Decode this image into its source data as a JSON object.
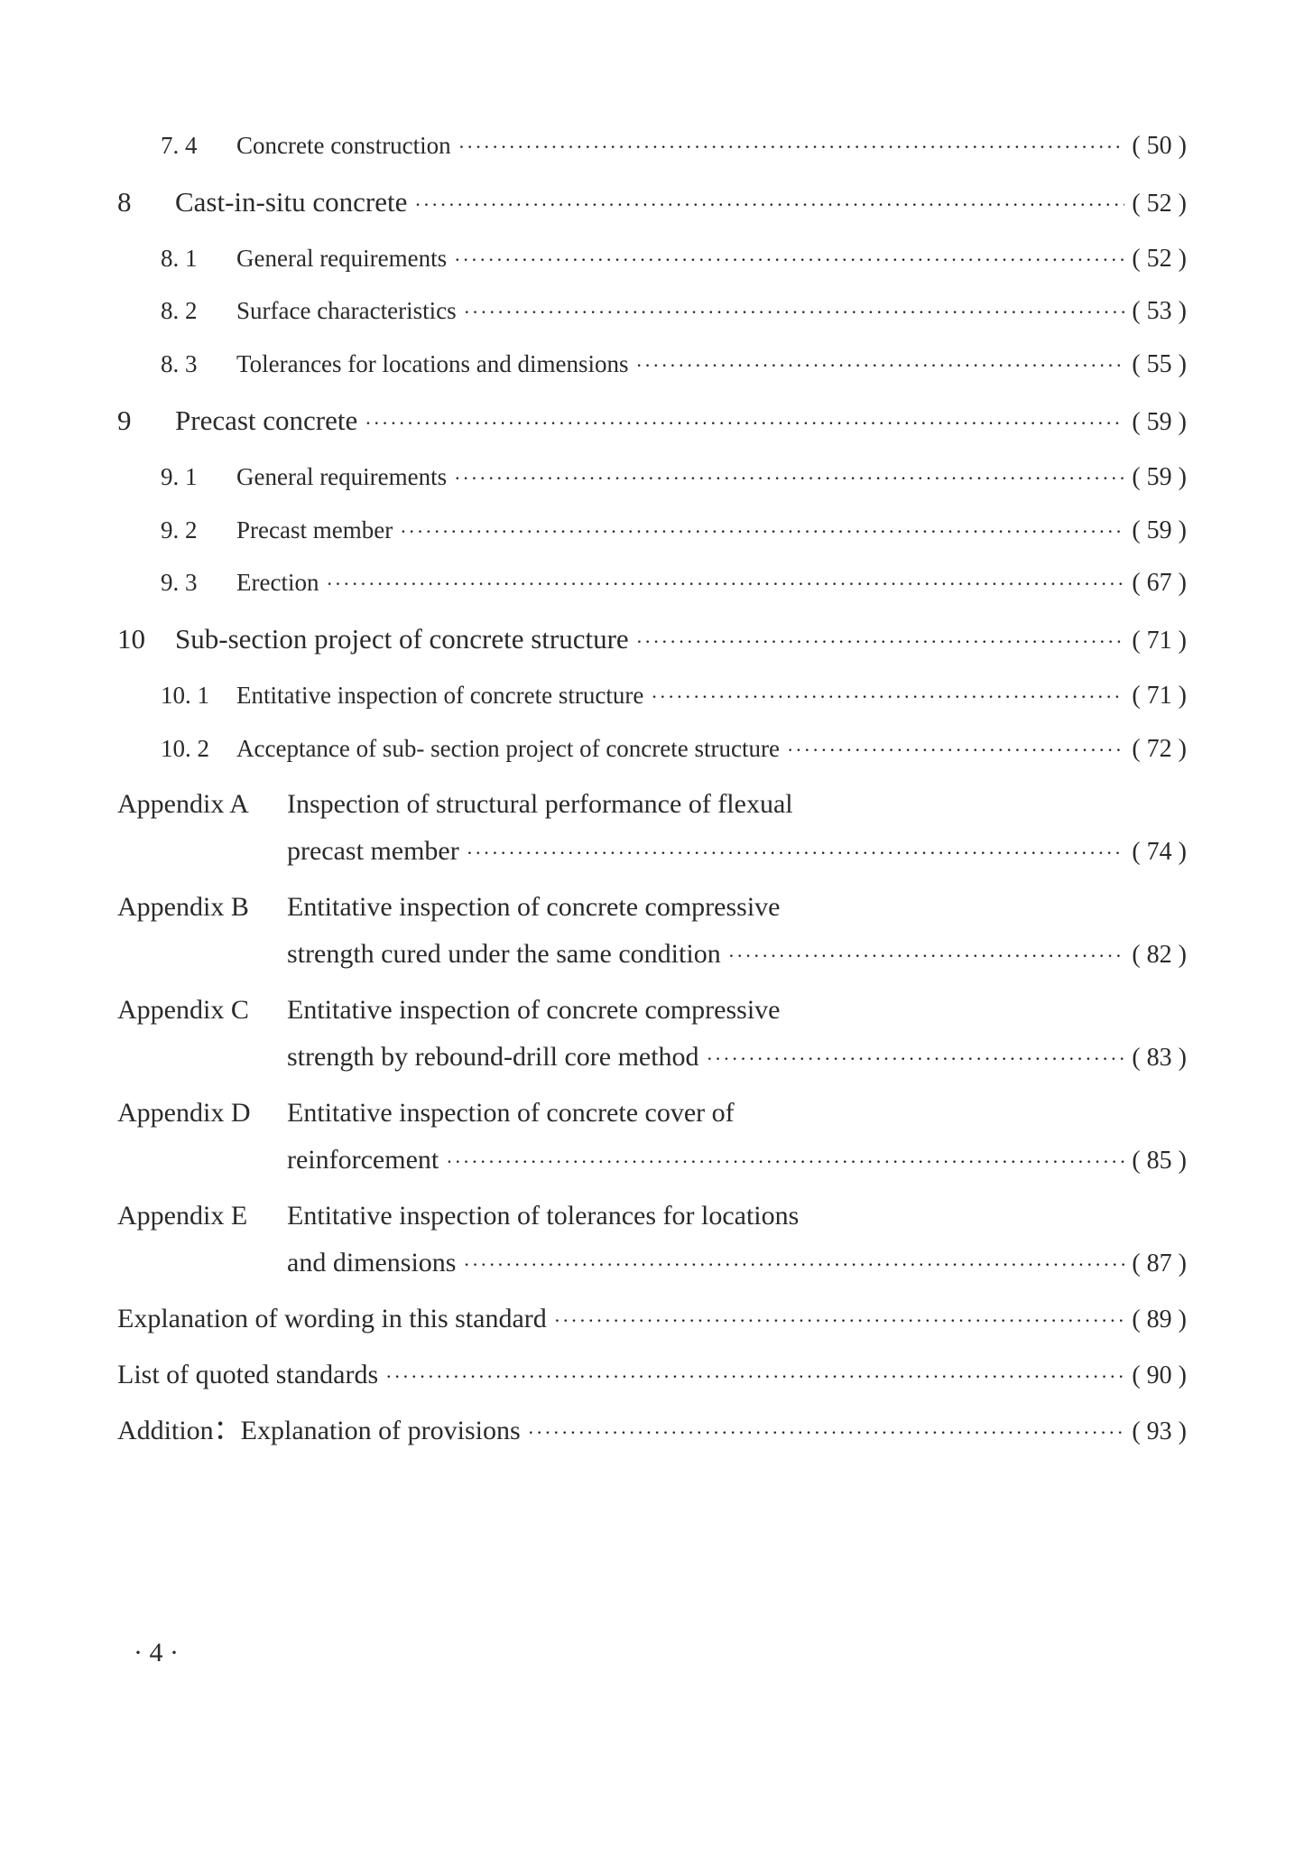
{
  "dots": "·································································································",
  "entries": [
    {
      "type": "subsection",
      "number": "7. 4",
      "title": "Concrete construction",
      "page": "50"
    },
    {
      "type": "section",
      "number": "8",
      "title": "Cast-in-situ concrete",
      "page": "52"
    },
    {
      "type": "subsection",
      "number": "8. 1",
      "title": "General requirements",
      "page": "52"
    },
    {
      "type": "subsection",
      "number": "8. 2",
      "title": "Surface characteristics",
      "page": "53"
    },
    {
      "type": "subsection",
      "number": "8. 3",
      "title": "Tolerances for locations and dimensions",
      "page": "55"
    },
    {
      "type": "section",
      "number": "9",
      "title": "Precast concrete",
      "page": "59"
    },
    {
      "type": "subsection",
      "number": "9. 1",
      "title": "General requirements",
      "page": "59"
    },
    {
      "type": "subsection",
      "number": "9. 2",
      "title": "Precast member",
      "page": "59"
    },
    {
      "type": "subsection",
      "number": "9. 3",
      "title": "Erection",
      "page": "67"
    },
    {
      "type": "section",
      "number": "10",
      "title": "Sub-section project of concrete structure",
      "page": "71"
    },
    {
      "type": "subsection",
      "number": "10. 1",
      "title": "Entitative inspection of concrete structure",
      "page": "71"
    },
    {
      "type": "subsection",
      "number": "10. 2",
      "title": "Acceptance of sub- section project of concrete structure",
      "page": "72"
    },
    {
      "type": "appendix",
      "label": "Appendix A",
      "title": "Inspection of structural performance of flexual",
      "cont": "precast member",
      "page": "74"
    },
    {
      "type": "appendix",
      "label": "Appendix B",
      "title": "Entitative inspection of concrete compressive",
      "cont": "strength cured under the same condition",
      "page": "82"
    },
    {
      "type": "appendix",
      "label": "Appendix C",
      "title": "Entitative inspection of concrete compressive",
      "cont": "strength by rebound-drill core method",
      "page": "83"
    },
    {
      "type": "appendix",
      "label": "Appendix D",
      "title": "Entitative inspection of concrete cover of",
      "cont": "reinforcement",
      "page": "85"
    },
    {
      "type": "appendix",
      "label": "Appendix E",
      "title": "Entitative inspection of tolerances for locations",
      "cont": "and dimensions",
      "page": "87"
    },
    {
      "type": "plain",
      "title": "Explanation of wording in this standard",
      "page": "89"
    },
    {
      "type": "plain",
      "title": "List of quoted standards",
      "page": "90"
    },
    {
      "type": "plain",
      "title": "Addition：Explanation of provisions",
      "page": "93"
    }
  ],
  "page_number": "4",
  "colors": {
    "text": "#2a2a2a",
    "background": "#ffffff"
  },
  "typography": {
    "section_fontsize": 31,
    "subsection_fontsize": 27,
    "appendix_fontsize": 30,
    "page_fontsize": 28
  }
}
